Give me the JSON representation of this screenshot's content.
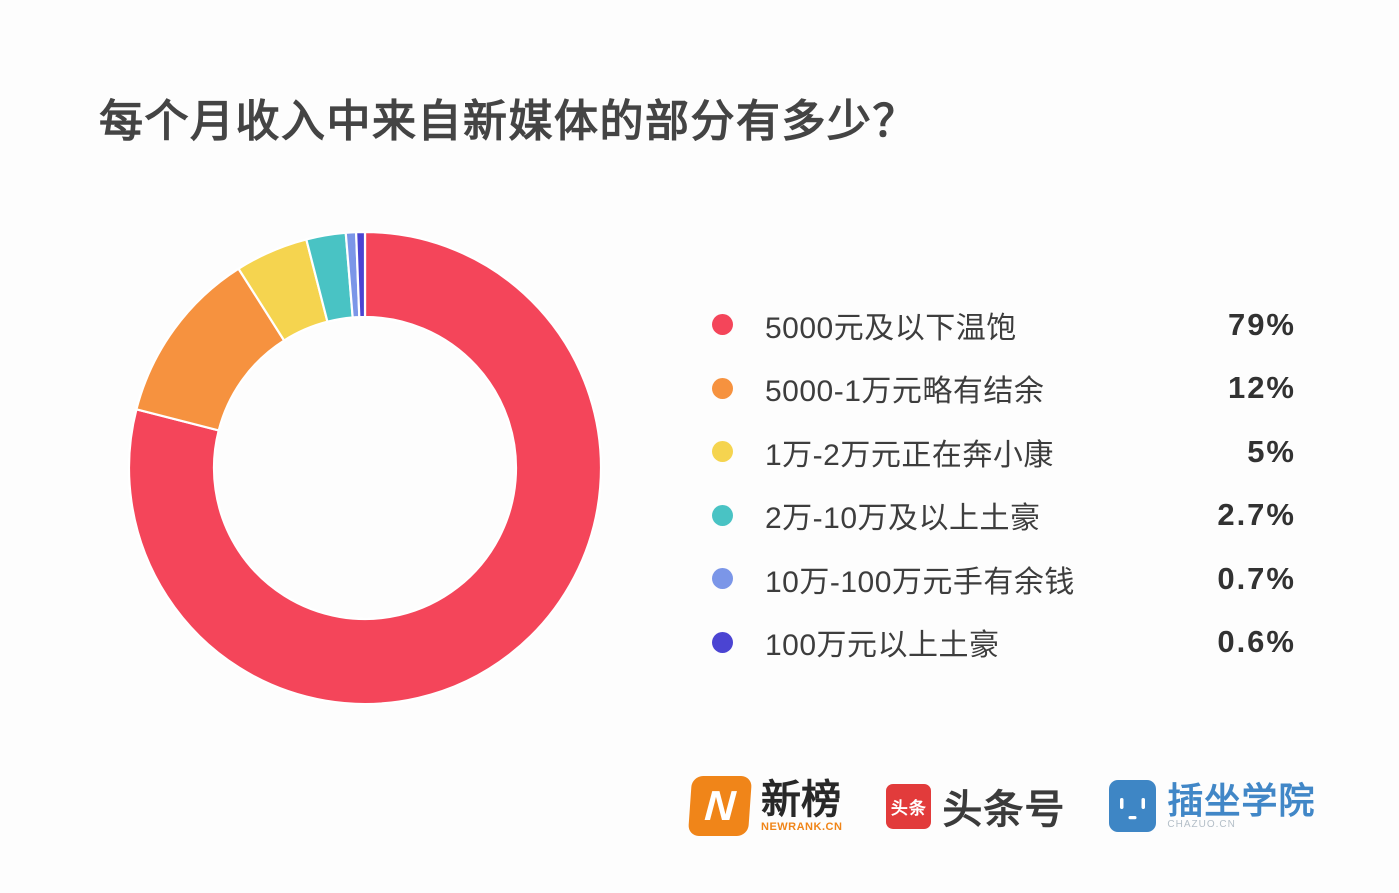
{
  "title": "每个月收入中来自新媒体的部分有多少？",
  "chart_data": {
    "type": "pie",
    "subtype": "donut",
    "title": "每个月收入中来自新媒体的部分有多少？",
    "legend_position": "right",
    "direction": "clockwise",
    "start_angle_deg": 0,
    "inner_radius_ratio": 0.64,
    "gap_color": "#ffffff",
    "series": [
      {
        "label": "5000元及以下温饱",
        "value": 79,
        "display": "79%",
        "color": "#F4455A"
      },
      {
        "label": "5000-1万元略有结余",
        "value": 12,
        "display": "12%",
        "color": "#F6923F"
      },
      {
        "label": "1万-2万元正在奔小康",
        "value": 5,
        "display": "5%",
        "color": "#F5D44F"
      },
      {
        "label": "2万-10万及以上土豪",
        "value": 2.7,
        "display": "2.7%",
        "color": "#49C3C4"
      },
      {
        "label": "10万-100万元手有余钱",
        "value": 0.7,
        "display": "0.7%",
        "color": "#7B96E8"
      },
      {
        "label": "100万元以上土豪",
        "value": 0.6,
        "display": "0.6%",
        "color": "#4B44D2"
      }
    ]
  },
  "footer": {
    "logos": [
      {
        "name": "newrank",
        "badge_letter": "N",
        "brand": "新榜",
        "subtext": "NEWRANK.CN",
        "badge_color": "#F08519",
        "brand_color": "#282828",
        "subtext_color": "#F08519"
      },
      {
        "name": "toutiao",
        "badge_text": "头条",
        "brand": "头条号",
        "badge_color": "#E23B3B",
        "brand_color": "#3b3b3b"
      },
      {
        "name": "chazuo",
        "brand": "插坐学院",
        "subtext": "CHAZUO.CN",
        "badge_color": "#3E86C5",
        "brand_color": "#4187C7"
      }
    ]
  },
  "colors": {
    "background": "#fdfdfd",
    "title_text": "#444444",
    "legend_text": "#3d3d3d",
    "percent_text": "#323232"
  }
}
